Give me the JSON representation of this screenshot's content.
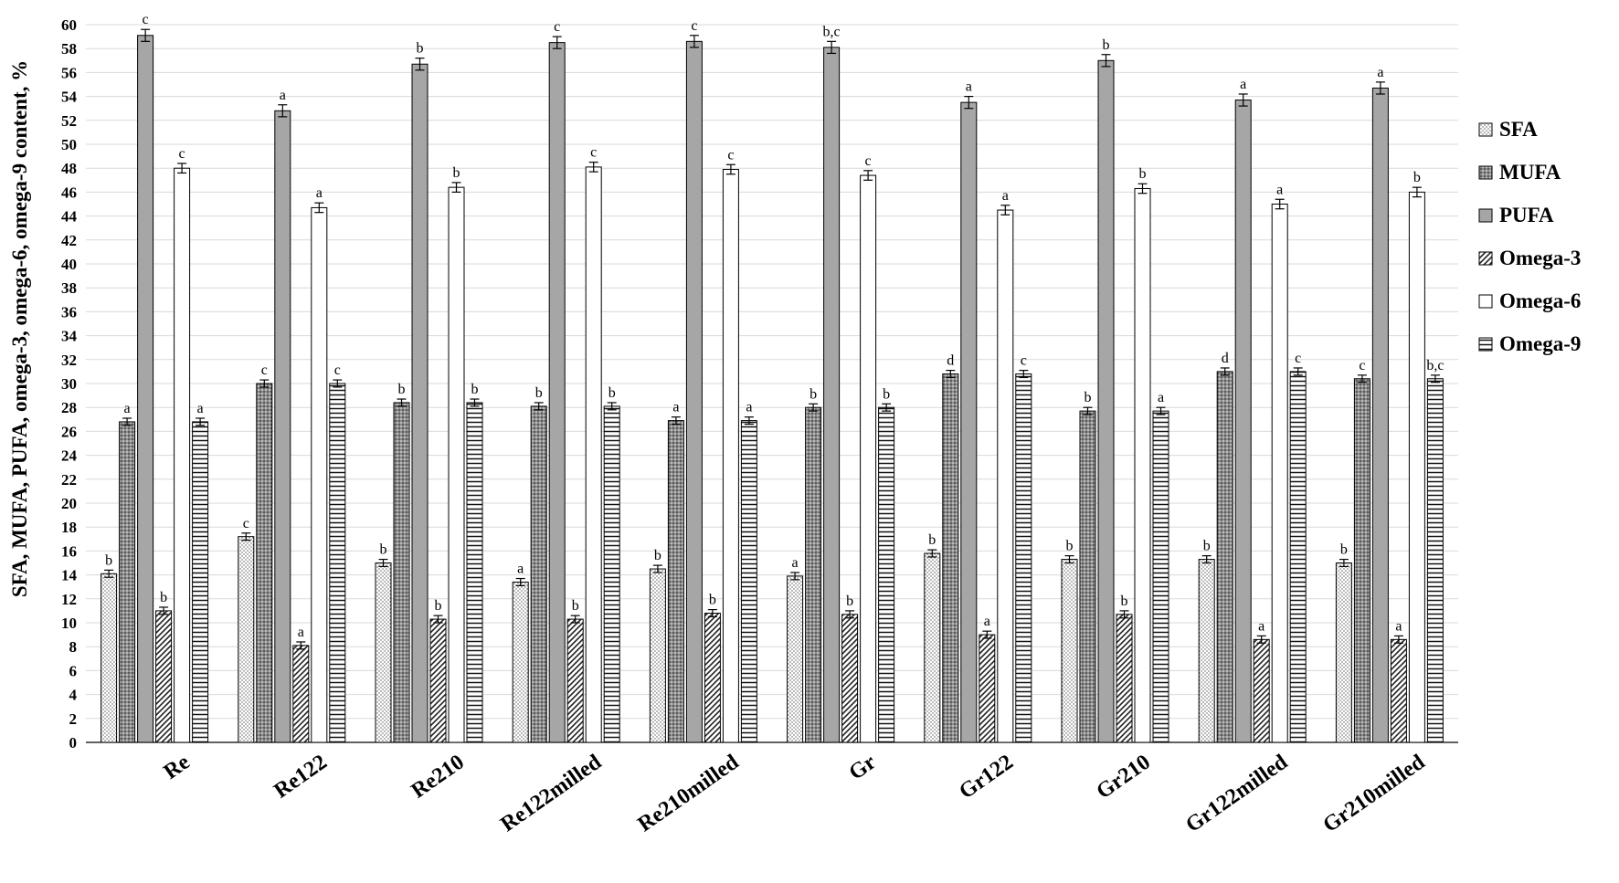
{
  "chart_data": {
    "type": "bar",
    "ylabel": "SFA, MUFA, PUFA, omega-3, omega-6, omega-9 content, %",
    "xlabel": "",
    "ylim": [
      0,
      60
    ],
    "ytick_step": 2,
    "grid": true,
    "legend_position": "right",
    "categories": [
      "Re",
      "Re122",
      "Re210",
      "Re122milled",
      "Re210milled",
      "Gr",
      "Gr122",
      "Gr210",
      "Gr122milled",
      "Gr210milled"
    ],
    "series": [
      {
        "name": "SFA",
        "pattern": "dots",
        "color": "#ffffff",
        "values": [
          14.1,
          17.2,
          15.0,
          13.4,
          14.5,
          13.9,
          15.8,
          15.3,
          15.3,
          15.0
        ],
        "errors": [
          0.3,
          0.3,
          0.3,
          0.3,
          0.3,
          0.3,
          0.3,
          0.3,
          0.3,
          0.3
        ],
        "labels": [
          "b",
          "c",
          "b",
          "a",
          "b",
          "a",
          "b",
          "b",
          "b",
          "b"
        ]
      },
      {
        "name": "MUFA",
        "pattern": "crosshatch",
        "color": "#808080",
        "values": [
          26.8,
          30.0,
          28.4,
          28.1,
          26.9,
          28.0,
          30.8,
          27.7,
          31.0,
          30.4
        ],
        "errors": [
          0.3,
          0.3,
          0.3,
          0.3,
          0.3,
          0.3,
          0.3,
          0.3,
          0.3,
          0.3
        ],
        "labels": [
          "a",
          "c",
          "b",
          "b",
          "a",
          "b",
          "d",
          "b",
          "d",
          "c"
        ]
      },
      {
        "name": "PUFA",
        "pattern": "solid",
        "color": "#a6a6a6",
        "values": [
          59.1,
          52.8,
          56.7,
          58.5,
          58.6,
          58.1,
          53.5,
          57.0,
          53.7,
          54.7
        ],
        "errors": [
          0.5,
          0.5,
          0.5,
          0.5,
          0.5,
          0.5,
          0.5,
          0.5,
          0.5,
          0.5
        ],
        "labels": [
          "c",
          "a",
          "b",
          "c",
          "c",
          "b,c",
          "a",
          "b",
          "a",
          "a"
        ]
      },
      {
        "name": "Omega-3",
        "pattern": "diagonal",
        "color": "#ffffff",
        "values": [
          11.0,
          8.1,
          10.3,
          10.3,
          10.8,
          10.7,
          9.0,
          10.7,
          8.6,
          8.6
        ],
        "errors": [
          0.3,
          0.3,
          0.3,
          0.3,
          0.3,
          0.3,
          0.3,
          0.3,
          0.3,
          0.3
        ],
        "labels": [
          "b",
          "a",
          "b",
          "b",
          "b",
          "b",
          "a",
          "b",
          "a",
          "a"
        ]
      },
      {
        "name": "Omega-6",
        "pattern": "none",
        "color": "#ffffff",
        "values": [
          48.0,
          44.7,
          46.4,
          48.1,
          47.9,
          47.4,
          44.5,
          46.3,
          45.0,
          46.0
        ],
        "errors": [
          0.4,
          0.4,
          0.4,
          0.4,
          0.4,
          0.4,
          0.4,
          0.4,
          0.4,
          0.4
        ],
        "labels": [
          "c",
          "a",
          "b",
          "c",
          "c",
          "c",
          "a",
          "b",
          "a",
          "b"
        ]
      },
      {
        "name": "Omega-9",
        "pattern": "horizontal",
        "color": "#ffffff",
        "values": [
          26.8,
          30.0,
          28.4,
          28.1,
          26.9,
          28.0,
          30.8,
          27.7,
          31.0,
          30.4
        ],
        "errors": [
          0.3,
          0.3,
          0.3,
          0.3,
          0.3,
          0.3,
          0.3,
          0.3,
          0.3,
          0.3
        ],
        "labels": [
          "a",
          "c",
          "b",
          "b",
          "a",
          "b",
          "c",
          "a",
          "c",
          "b,c"
        ]
      }
    ]
  }
}
